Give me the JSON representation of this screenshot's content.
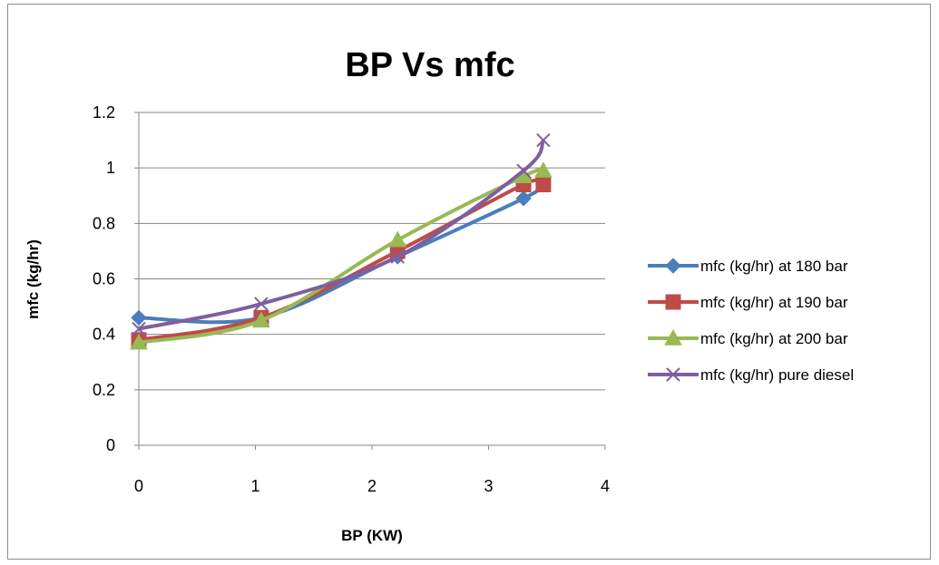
{
  "chart_data": {
    "type": "line",
    "title": "BP Vs mfc",
    "xlabel": "BP (KW)",
    "ylabel": "mfc (kg/hr)",
    "xlim": [
      0,
      4
    ],
    "ylim": [
      0,
      1.2
    ],
    "xticks": [
      0,
      1,
      2,
      3,
      4
    ],
    "yticks": [
      0,
      0.2,
      0.4,
      0.6,
      0.8,
      1,
      1.2
    ],
    "ytick_labels": [
      "0",
      "0.2",
      "0.4",
      "0.6",
      "0.8",
      "1",
      "1.2"
    ],
    "grid": "horizontal",
    "legend_position": "right",
    "smooth": true,
    "series": [
      {
        "name": "mfc (kg/hr) at 180 bar",
        "color": "#4a7ebb",
        "marker": "diamond",
        "x": [
          0,
          1.05,
          2.22,
          3.3,
          3.47
        ],
        "y": [
          0.46,
          0.46,
          0.68,
          0.89,
          0.94
        ]
      },
      {
        "name": "mfc (kg/hr) at 190 bar",
        "color": "#be4b48",
        "marker": "square",
        "x": [
          0,
          1.05,
          2.22,
          3.3,
          3.47
        ],
        "y": [
          0.38,
          0.46,
          0.7,
          0.94,
          0.94
        ]
      },
      {
        "name": "mfc (kg/hr) at 200 bar",
        "color": "#98b954",
        "marker": "triangle",
        "x": [
          0,
          1.05,
          2.22,
          3.3,
          3.47
        ],
        "y": [
          0.37,
          0.45,
          0.74,
          0.97,
          0.99
        ]
      },
      {
        "name": "mfc (kg/hr) pure diesel",
        "color": "#7d5fa0",
        "marker": "x",
        "x": [
          0,
          1.05,
          2.22,
          3.3,
          3.47
        ],
        "y": [
          0.42,
          0.51,
          0.68,
          0.99,
          1.1
        ]
      }
    ]
  }
}
